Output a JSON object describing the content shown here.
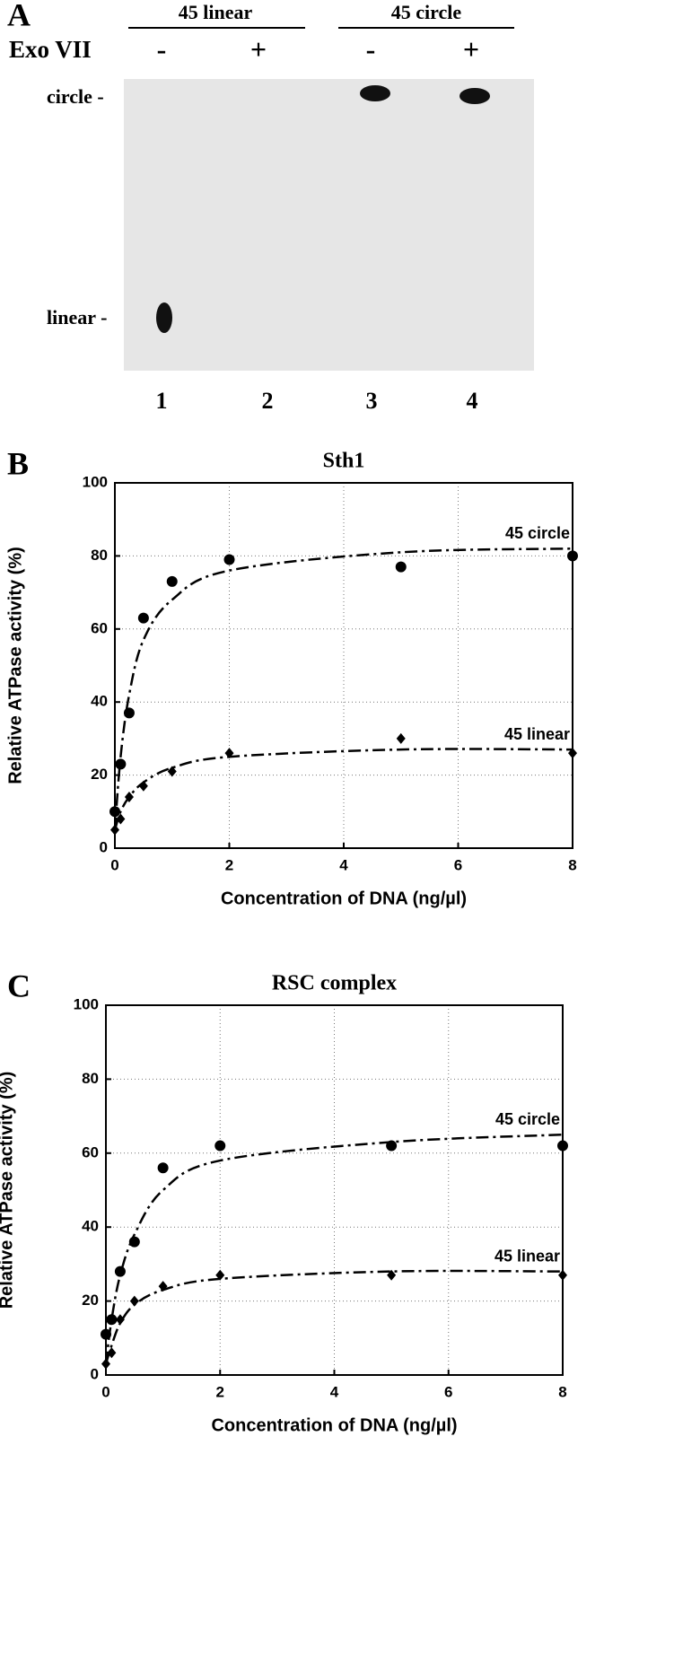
{
  "gel": {
    "panel_label": "A",
    "groups": [
      "45 linear",
      "45 circle"
    ],
    "row_label": "Exo VII",
    "treatments": [
      "-",
      "+",
      "-",
      "+"
    ],
    "band_labels": [
      "circle -",
      "linear -"
    ],
    "lanes": [
      "1",
      "2",
      "3",
      "4"
    ]
  },
  "chart_data": [
    {
      "type": "scatter",
      "panel_label": "B",
      "title": "Sth1",
      "xlabel": "Concentration of DNA (ng/µl)",
      "ylabel": "Relative ATPase activity (%)",
      "x": [
        0,
        0.1,
        0.25,
        0.5,
        1,
        2,
        5,
        8
      ],
      "series": [
        {
          "name": "45 circle",
          "color": "#000000",
          "marker": "circle",
          "values": [
            10,
            23,
            37,
            63,
            73,
            79,
            77,
            80
          ],
          "fit": [
            5,
            25,
            42,
            57,
            68,
            76,
            81,
            82
          ]
        },
        {
          "name": "45 linear",
          "color": "#000000",
          "marker": "diamond",
          "values": [
            5,
            8,
            14,
            17,
            21,
            26,
            30,
            26
          ],
          "fit": [
            5,
            10,
            14,
            18,
            22,
            25,
            27,
            27
          ]
        }
      ],
      "xlim": [
        0,
        8
      ],
      "xticks": [
        0,
        2,
        4,
        6,
        8
      ],
      "ylim": [
        0,
        100
      ],
      "yticks": [
        0,
        20,
        40,
        60,
        80,
        100
      ],
      "grid": true
    },
    {
      "type": "scatter",
      "panel_label": "C",
      "title": "RSC complex",
      "xlabel": "Concentration of DNA (ng/µl)",
      "ylabel": "Relative ATPase activity (%)",
      "x": [
        0,
        0.1,
        0.25,
        0.5,
        1,
        2,
        5,
        8
      ],
      "series": [
        {
          "name": "45 circle",
          "color": "#000000",
          "marker": "circle",
          "values": [
            11,
            15,
            28,
            36,
            56,
            62,
            62,
            62
          ],
          "fit": [
            3,
            15,
            27,
            38,
            50,
            58,
            63,
            65
          ]
        },
        {
          "name": "45 linear",
          "color": "#000000",
          "marker": "diamond",
          "values": [
            3,
            6,
            15,
            20,
            24,
            27,
            27,
            27
          ],
          "fit": [
            3,
            8,
            14,
            19,
            23,
            26,
            28,
            28
          ]
        }
      ],
      "xlim": [
        0,
        8
      ],
      "xticks": [
        0,
        2,
        4,
        6,
        8
      ],
      "ylim": [
        0,
        100
      ],
      "yticks": [
        0,
        20,
        40,
        60,
        80,
        100
      ],
      "grid": true
    }
  ]
}
